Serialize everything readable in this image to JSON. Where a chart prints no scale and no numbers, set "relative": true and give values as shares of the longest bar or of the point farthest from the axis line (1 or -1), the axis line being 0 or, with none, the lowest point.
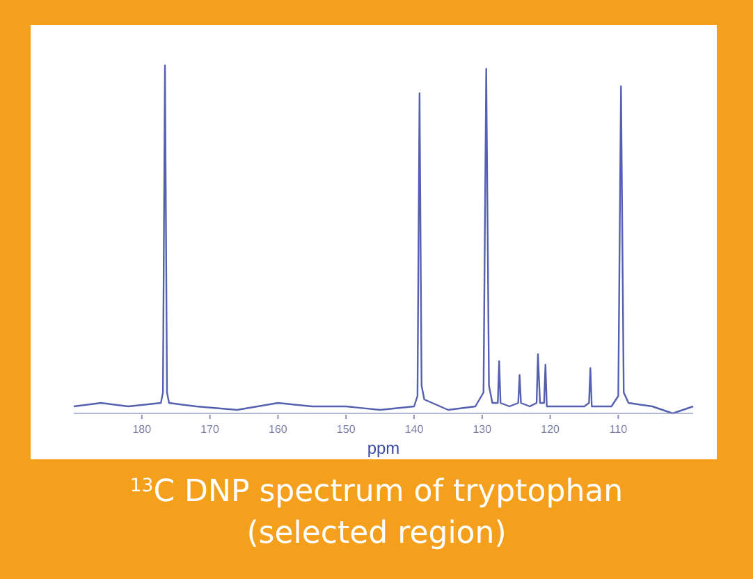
{
  "chart_data": {
    "type": "line",
    "title": "$^{13}$C DNP spectrum of tryptophan\n(selected region)",
    "xlabel": "ppm",
    "relative": true,
    "xlim": [
      190,
      99
    ],
    "xticks": [
      180,
      170,
      160,
      150,
      140,
      130,
      120,
      110
    ],
    "grid": false,
    "marker": "none",
    "line_style": "solid",
    "series": [
      {
        "color": "#5560b0",
        "x": [
          190,
          186,
          182,
          177.2,
          176.9,
          176.6,
          176.3,
          176,
          172,
          166,
          160,
          155,
          150,
          145,
          140,
          139.5,
          139.2,
          138.9,
          138.5,
          135,
          131,
          129.8,
          129.4,
          129.0,
          128.5,
          127.7,
          127.5,
          127.3,
          126,
          124.7,
          124.5,
          124.3,
          123,
          122,
          121.8,
          121.5,
          120.9,
          120.7,
          120.5,
          118,
          115,
          114.3,
          114.1,
          113.9,
          111,
          110,
          109.6,
          109.2,
          108.5,
          105,
          102,
          99
        ],
        "values": [
          0.02,
          0.03,
          0.02,
          0.03,
          0.06,
          1.0,
          0.06,
          0.03,
          0.02,
          0.01,
          0.03,
          0.02,
          0.02,
          0.01,
          0.02,
          0.05,
          0.92,
          0.08,
          0.04,
          0.01,
          0.02,
          0.06,
          0.99,
          0.08,
          0.03,
          0.03,
          0.15,
          0.03,
          0.02,
          0.03,
          0.11,
          0.03,
          0.02,
          0.03,
          0.17,
          0.03,
          0.03,
          0.14,
          0.02,
          0.02,
          0.02,
          0.03,
          0.13,
          0.02,
          0.02,
          0.05,
          0.94,
          0.06,
          0.03,
          0.02,
          0.0,
          0.02
        ]
      }
    ]
  }
}
